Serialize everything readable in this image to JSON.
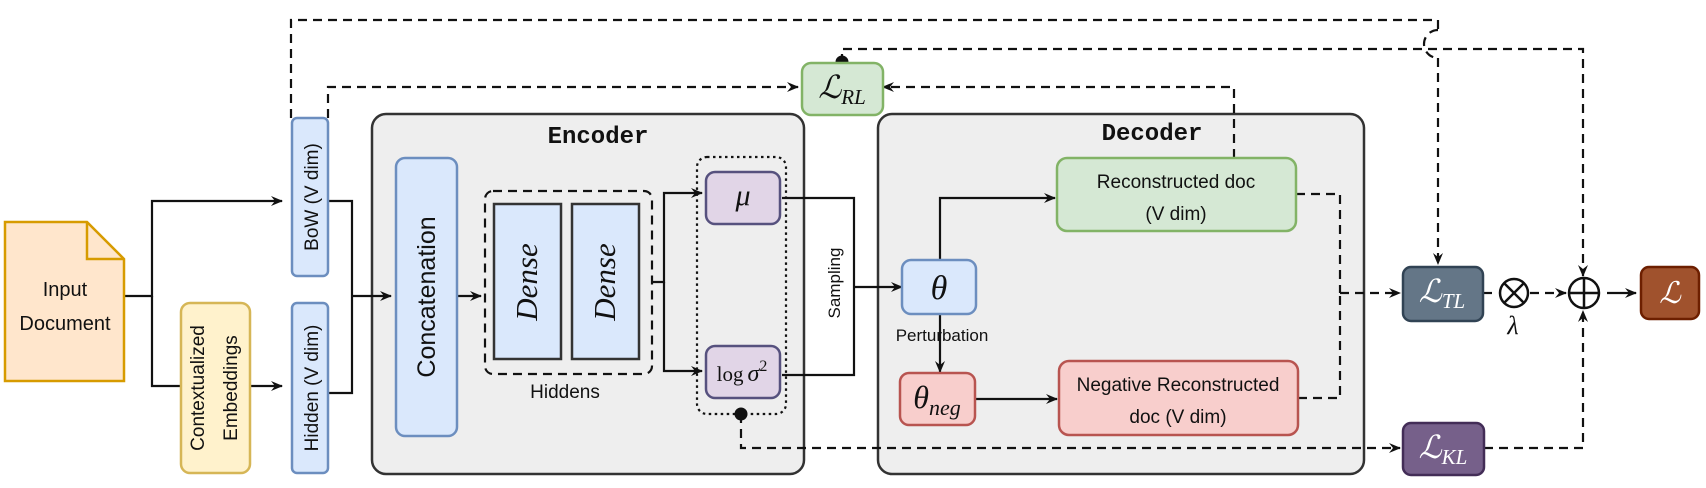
{
  "input": {
    "line1": "Input",
    "line2": "Document"
  },
  "bow": "BoW (V dim)",
  "hidden_input": "Hidden (V dim)",
  "contextualized": {
    "line1": "Contextualized",
    "line2": "Embeddings"
  },
  "encoder": {
    "title": "Encoder",
    "concat": "Concatenation",
    "dense1": "Dense",
    "dense2": "Dense",
    "hiddens_label": "Hiddens",
    "mu": "μ",
    "logvar_log": "log",
    "logvar_sigma": "σ",
    "logvar_exp": "2"
  },
  "sampling": "Sampling",
  "decoder": {
    "title": "Decoder",
    "theta": "θ",
    "perturbation": "Perturbation",
    "theta_neg_base": "θ",
    "theta_neg_sub": "neg",
    "recon": {
      "line1": "Reconstructed doc",
      "line2": "(V dim)"
    },
    "neg_recon": {
      "line1": "Negative Reconstructed",
      "line2": "doc (V dim)"
    }
  },
  "losses": {
    "rl": {
      "base": "ℒ",
      "sub": "RL"
    },
    "tl": {
      "base": "ℒ",
      "sub": "TL"
    },
    "kl": {
      "base": "ℒ",
      "sub": "KL"
    },
    "total": {
      "base": "ℒ"
    }
  },
  "ops": {
    "otimes": "⊗",
    "oplus": "⊕",
    "lambda": "λ"
  },
  "colors": {
    "orange_fill": "#ffe6cc",
    "orange_stroke": "#d79b00",
    "blue_fill": "#dae8fc",
    "blue_stroke": "#6c8ebf",
    "yellow_fill": "#fff2cc",
    "yellow_stroke": "#d6b656",
    "green_fill": "#d5e8d4",
    "green_stroke": "#82b366",
    "red_fill": "#f8cecc",
    "red_stroke": "#b85450",
    "purple_fill": "#e1d5e7",
    "purple_stroke": "#9673a6",
    "slate_fill": "#647687",
    "plum_fill": "#76608a",
    "brown_fill": "#a0522d",
    "panel_fill": "#eeeeee",
    "panel_stroke": "#333333"
  }
}
